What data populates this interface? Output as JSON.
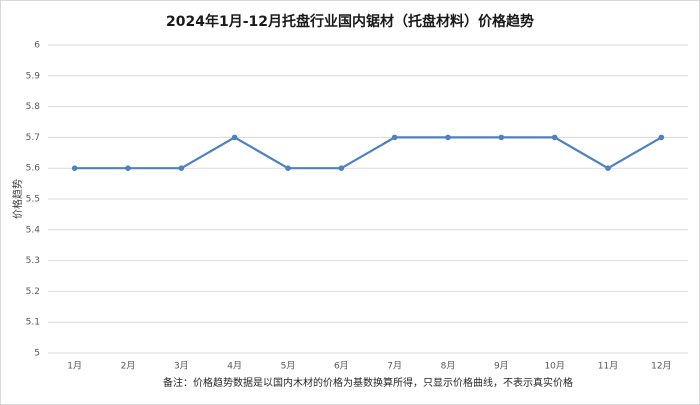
{
  "chart_data": {
    "type": "line",
    "title": "2024年1月-12月托盘行业国内锯材（托盘材料）价格趋势",
    "y_label": "价格趋势",
    "note": "备注：价格趋势数据是以国内木材的价格为基数换算所得，只显示价格曲线，不表示真实价格",
    "categories": [
      "1月",
      "2月",
      "3月",
      "4月",
      "5月",
      "6月",
      "7月",
      "8月",
      "9月",
      "10月",
      "11月",
      "12月"
    ],
    "series": [
      {
        "name": "价格趋势",
        "color": "#4f81bd",
        "values": [
          5.6,
          5.6,
          5.6,
          5.7,
          5.6,
          5.6,
          5.7,
          5.7,
          5.7,
          5.7,
          5.6,
          5.7
        ]
      }
    ],
    "ylim": [
      5,
      6
    ],
    "yticks": [
      5,
      5.1,
      5.2,
      5.3,
      5.4,
      5.5,
      5.6,
      5.7,
      5.8,
      5.9,
      6
    ],
    "grid": true
  }
}
